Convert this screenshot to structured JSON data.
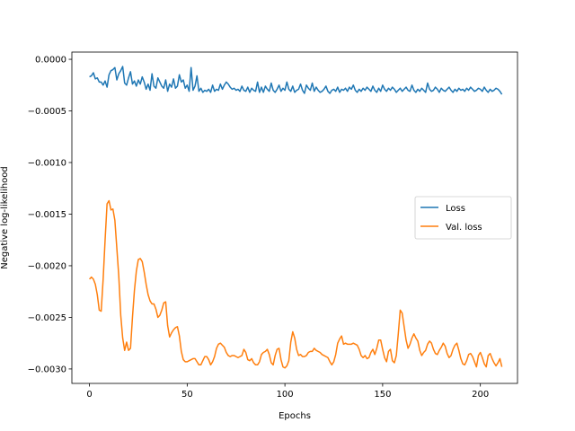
{
  "chart_data": {
    "type": "line",
    "title": "",
    "xlabel": "Epochs",
    "ylabel": "Negative log-likelihood",
    "xlim": [
      -9,
      219
    ],
    "ylim": [
      -0.00314,
      7e-05
    ],
    "x_ticks": [
      0,
      50,
      100,
      150,
      200
    ],
    "x_tick_labels": [
      "0",
      "50",
      "100",
      "150",
      "200"
    ],
    "y_ticks": [
      0.0,
      -0.0005,
      -0.001,
      -0.0015,
      -0.002,
      -0.0025,
      -0.003
    ],
    "y_tick_labels": [
      "0.0000",
      "−0.0005",
      "−0.0010",
      "−0.0015",
      "−0.0020",
      "−0.0025",
      "−0.0030"
    ],
    "grid": false,
    "legend_position": "center-right",
    "x": [
      0,
      1,
      2,
      3,
      4,
      5,
      6,
      7,
      8,
      9,
      10,
      11,
      12,
      13,
      14,
      15,
      16,
      17,
      18,
      19,
      20,
      21,
      22,
      23,
      24,
      25,
      26,
      27,
      28,
      29,
      30,
      31,
      32,
      33,
      34,
      35,
      36,
      37,
      38,
      39,
      40,
      41,
      42,
      43,
      44,
      45,
      46,
      47,
      48,
      49,
      50,
      51,
      52,
      53,
      54,
      55,
      56,
      57,
      58,
      59,
      60,
      61,
      62,
      63,
      64,
      65,
      66,
      67,
      68,
      69,
      70,
      71,
      72,
      73,
      74,
      75,
      76,
      77,
      78,
      79,
      80,
      81,
      82,
      83,
      84,
      85,
      86,
      87,
      88,
      89,
      90,
      91,
      92,
      93,
      94,
      95,
      96,
      97,
      98,
      99,
      100,
      101,
      102,
      103,
      104,
      105,
      106,
      107,
      108,
      109,
      110,
      111,
      112,
      113,
      114,
      115,
      116,
      117,
      118,
      119,
      120,
      121,
      122,
      123,
      124,
      125,
      126,
      127,
      128,
      129,
      130,
      131,
      132,
      133,
      134,
      135,
      136,
      137,
      138,
      139,
      140,
      141,
      142,
      143,
      144,
      145,
      146,
      147,
      148,
      149,
      150,
      151,
      152,
      153,
      154,
      155,
      156,
      157,
      158,
      159,
      160,
      161,
      162,
      163,
      164,
      165,
      166,
      167,
      168,
      169,
      170,
      171,
      172,
      173,
      174,
      175,
      176,
      177,
      178,
      179,
      180,
      181,
      182,
      183,
      184,
      185,
      186,
      187,
      188,
      189,
      190,
      191,
      192,
      193,
      194,
      195,
      196,
      197,
      198,
      199,
      200,
      201,
      202,
      203,
      204,
      205,
      206,
      207,
      208,
      209,
      210,
      211
    ],
    "series": [
      {
        "name": "Loss",
        "color": "#1f77b4",
        "values": [
          -0.00017,
          -0.00016,
          -0.00013,
          -0.00019,
          -0.00018,
          -0.00022,
          -0.00022,
          -0.00025,
          -0.00021,
          -0.00027,
          -0.00015,
          -0.00011,
          -0.0001,
          -8e-05,
          -0.0002,
          -0.00014,
          -0.00011,
          -7e-05,
          -0.00023,
          -0.00025,
          -0.00018,
          -0.00012,
          -0.00024,
          -0.00021,
          -0.00026,
          -0.0002,
          -0.00024,
          -0.00017,
          -0.00022,
          -0.00029,
          -0.00024,
          -0.0003,
          -0.00014,
          -0.00026,
          -0.00028,
          -0.00018,
          -0.00022,
          -0.00026,
          -0.00028,
          -0.0002,
          -0.00031,
          -0.00024,
          -0.00027,
          -0.00019,
          -0.00028,
          -0.00026,
          -0.00015,
          -0.00022,
          -0.0002,
          -0.00028,
          -0.00025,
          -0.00031,
          -8e-05,
          -0.0003,
          -0.00026,
          -0.00016,
          -0.00031,
          -0.00028,
          -0.00032,
          -0.0003,
          -0.00031,
          -0.00029,
          -0.00032,
          -0.00025,
          -0.00031,
          -0.00029,
          -0.0003,
          -0.00024,
          -0.00029,
          -0.00025,
          -0.00022,
          -0.00024,
          -0.00027,
          -0.00029,
          -0.00028,
          -0.0003,
          -0.00029,
          -0.00031,
          -0.00026,
          -0.0003,
          -0.00031,
          -0.00027,
          -0.00032,
          -0.00028,
          -0.0003,
          -0.00031,
          -0.00022,
          -0.00032,
          -0.00027,
          -0.00032,
          -0.00026,
          -0.00029,
          -0.00031,
          -0.00023,
          -0.0003,
          -0.00032,
          -0.00029,
          -0.00025,
          -0.00031,
          -0.00028,
          -0.0003,
          -0.00022,
          -0.00029,
          -0.00031,
          -0.00026,
          -0.00032,
          -0.0003,
          -0.00029,
          -0.00024,
          -0.0003,
          -0.00033,
          -0.00025,
          -0.00028,
          -0.0003,
          -0.00023,
          -0.00031,
          -0.00027,
          -0.0003,
          -0.00032,
          -0.00031,
          -0.00029,
          -0.00026,
          -0.00031,
          -0.00033,
          -0.0003,
          -0.00029,
          -0.00031,
          -0.00027,
          -0.00032,
          -0.00029,
          -0.0003,
          -0.00028,
          -0.00031,
          -0.00027,
          -0.00029,
          -0.00025,
          -0.0003,
          -0.00032,
          -0.00029,
          -0.00031,
          -0.00028,
          -0.0003,
          -0.00027,
          -0.00029,
          -0.00031,
          -0.00026,
          -0.0003,
          -0.00032,
          -0.00028,
          -0.00031,
          -0.00025,
          -0.00029,
          -0.00031,
          -0.00028,
          -0.0003,
          -0.00027,
          -0.00029,
          -0.00032,
          -0.0003,
          -0.00028,
          -0.00031,
          -0.00029,
          -0.00027,
          -0.0003,
          -0.00031,
          -0.00025,
          -0.0003,
          -0.00032,
          -0.00029,
          -0.00031,
          -0.00028,
          -0.0003,
          -0.00032,
          -0.00023,
          -0.00029,
          -0.00031,
          -0.0003,
          -0.00027,
          -0.00029,
          -0.00032,
          -0.00028,
          -0.0003,
          -0.00031,
          -0.00029,
          -0.00027,
          -0.0003,
          -0.00032,
          -0.00029,
          -0.00031,
          -0.00028,
          -0.0003,
          -0.00029,
          -0.00031,
          -0.00028,
          -0.0003,
          -0.00027,
          -0.00029,
          -0.00031,
          -0.0003,
          -0.00028,
          -0.00029,
          -0.00031,
          -0.00027,
          -0.0003,
          -0.00032,
          -0.00029,
          -0.00031,
          -0.0003,
          -0.00028,
          -0.00029,
          -0.00031,
          -0.00034
        ]
      },
      {
        "name": "Val. loss",
        "color": "#ff7f0e",
        "values": [
          -0.00213,
          -0.00211,
          -0.00213,
          -0.00218,
          -0.00228,
          -0.00243,
          -0.00244,
          -0.00213,
          -0.00175,
          -0.0014,
          -0.00137,
          -0.00146,
          -0.00145,
          -0.00156,
          -0.00183,
          -0.0021,
          -0.00248,
          -0.0027,
          -0.00282,
          -0.00274,
          -0.00282,
          -0.0028,
          -0.0025,
          -0.00224,
          -0.00205,
          -0.00194,
          -0.00193,
          -0.00196,
          -0.00206,
          -0.00218,
          -0.00228,
          -0.00234,
          -0.00237,
          -0.00237,
          -0.00242,
          -0.0025,
          -0.00248,
          -0.00243,
          -0.00236,
          -0.00235,
          -0.00258,
          -0.00269,
          -0.00265,
          -0.00262,
          -0.0026,
          -0.00259,
          -0.00268,
          -0.00283,
          -0.00291,
          -0.00293,
          -0.00293,
          -0.00292,
          -0.00291,
          -0.0029,
          -0.0029,
          -0.00293,
          -0.00296,
          -0.00296,
          -0.00292,
          -0.00288,
          -0.00288,
          -0.00291,
          -0.00296,
          -0.00293,
          -0.00288,
          -0.0028,
          -0.00276,
          -0.00275,
          -0.00277,
          -0.00279,
          -0.00284,
          -0.00287,
          -0.00288,
          -0.00287,
          -0.00287,
          -0.00288,
          -0.00289,
          -0.00288,
          -0.00287,
          -0.00281,
          -0.00284,
          -0.00291,
          -0.00292,
          -0.0029,
          -0.00294,
          -0.00296,
          -0.00296,
          -0.00293,
          -0.00286,
          -0.00284,
          -0.00283,
          -0.00281,
          -0.00286,
          -0.00294,
          -0.00296,
          -0.00287,
          -0.00281,
          -0.0028,
          -0.00291,
          -0.00298,
          -0.00299,
          -0.00297,
          -0.00292,
          -0.00274,
          -0.00264,
          -0.0027,
          -0.00281,
          -0.00287,
          -0.00286,
          -0.00288,
          -0.00288,
          -0.00287,
          -0.00284,
          -0.00283,
          -0.00283,
          -0.0028,
          -0.00282,
          -0.00283,
          -0.00284,
          -0.00286,
          -0.00287,
          -0.00288,
          -0.00289,
          -0.00293,
          -0.00296,
          -0.00293,
          -0.00286,
          -0.00275,
          -0.00271,
          -0.00268,
          -0.00276,
          -0.00275,
          -0.00276,
          -0.00276,
          -0.00276,
          -0.00275,
          -0.00276,
          -0.00277,
          -0.00281,
          -0.00287,
          -0.00289,
          -0.00287,
          -0.0029,
          -0.00289,
          -0.00284,
          -0.00281,
          -0.00286,
          -0.0028,
          -0.00272,
          -0.00272,
          -0.00281,
          -0.00289,
          -0.00293,
          -0.00283,
          -0.00281,
          -0.00292,
          -0.00294,
          -0.00287,
          -0.00266,
          -0.00243,
          -0.00246,
          -0.00259,
          -0.00272,
          -0.0028,
          -0.00276,
          -0.0027,
          -0.00266,
          -0.0027,
          -0.00273,
          -0.00282,
          -0.00287,
          -0.00284,
          -0.00282,
          -0.00276,
          -0.00273,
          -0.00275,
          -0.00281,
          -0.00285,
          -0.00286,
          -0.00282,
          -0.00279,
          -0.00275,
          -0.00278,
          -0.00285,
          -0.00289,
          -0.00287,
          -0.00281,
          -0.00277,
          -0.00275,
          -0.00282,
          -0.0029,
          -0.00295,
          -0.00296,
          -0.00292,
          -0.00286,
          -0.00285,
          -0.00288,
          -0.00293,
          -0.00298,
          -0.00287,
          -0.00284,
          -0.00289,
          -0.00295,
          -0.00298,
          -0.00287,
          -0.00285,
          -0.0029,
          -0.00294,
          -0.00297,
          -0.00294,
          -0.0029,
          -0.00298
        ]
      }
    ]
  }
}
